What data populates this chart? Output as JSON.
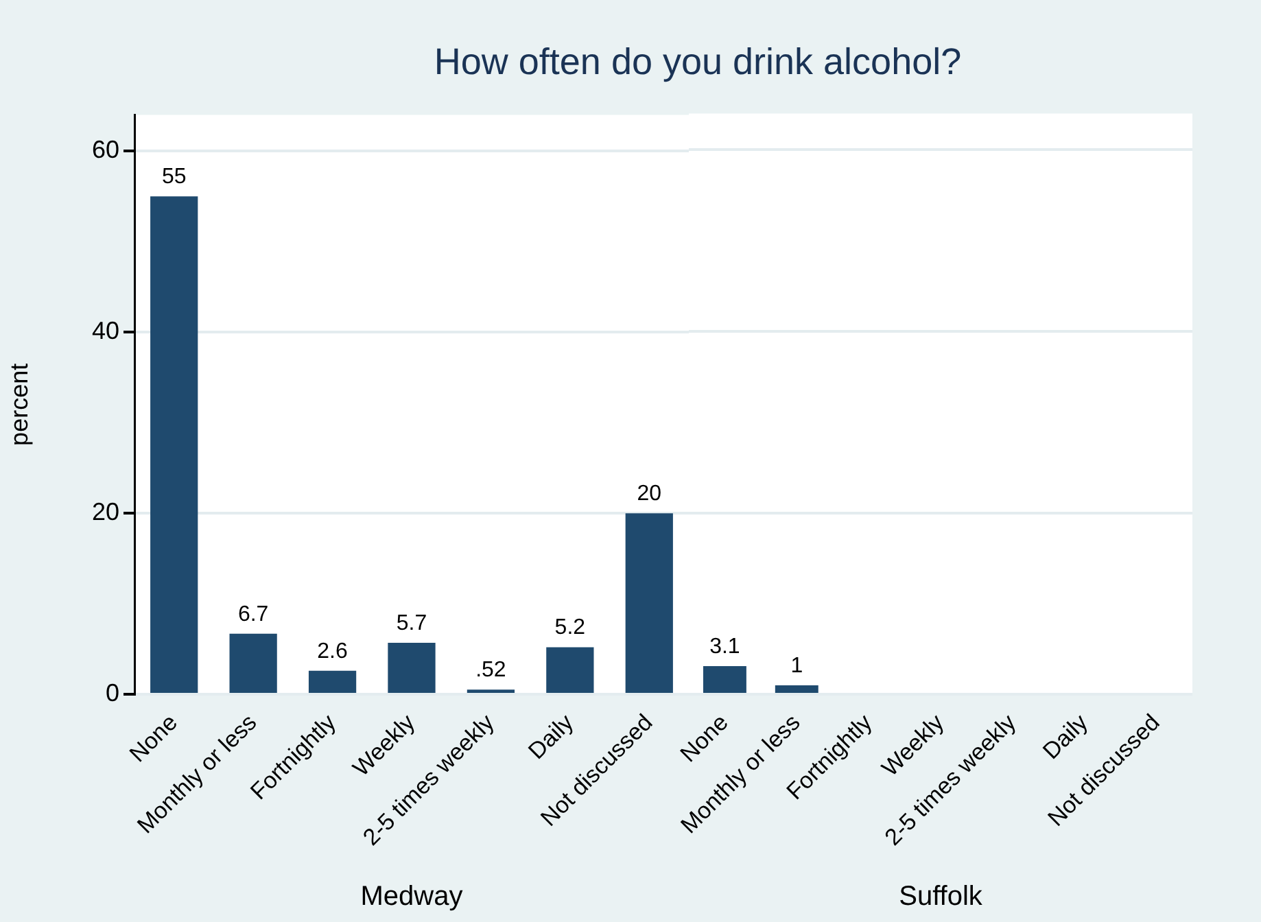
{
  "chart_data": [
    {
      "type": "bar",
      "title": "How often do you drink alcohol?",
      "ylabel": "percent",
      "xlabel": "Medway",
      "categories": [
        "None",
        "Monthly or less",
        "Fortnightly",
        "Weekly",
        "2-5 times weekly",
        "Daily",
        "Not discussed"
      ],
      "values": [
        55,
        6.7,
        2.6,
        5.7,
        0.52,
        5.2,
        20
      ],
      "value_labels": [
        "55",
        "6.7",
        "2.6",
        "5.7",
        ".52",
        "5.2",
        "20"
      ],
      "color": "#1f4a6e",
      "ylim": [
        0,
        64
      ],
      "yticks": [
        0,
        20,
        40,
        60
      ],
      "grid": "y"
    },
    {
      "type": "bar",
      "xlabel": "Suffolk",
      "categories": [
        "None",
        "Monthly or less",
        "Fortnightly",
        "Weekly",
        "2-5 times weekly",
        "Daily",
        "Not discussed"
      ],
      "values": [
        3.1,
        1,
        0,
        0,
        0,
        0,
        0
      ],
      "value_labels": [
        "3.1",
        "1",
        null,
        null,
        null,
        null,
        null
      ],
      "color": "#1f4a6e",
      "ylim": [
        0,
        64
      ],
      "yticks": [
        0,
        20,
        40,
        60
      ],
      "grid": "y",
      "tick_labels": "x"
    }
  ]
}
